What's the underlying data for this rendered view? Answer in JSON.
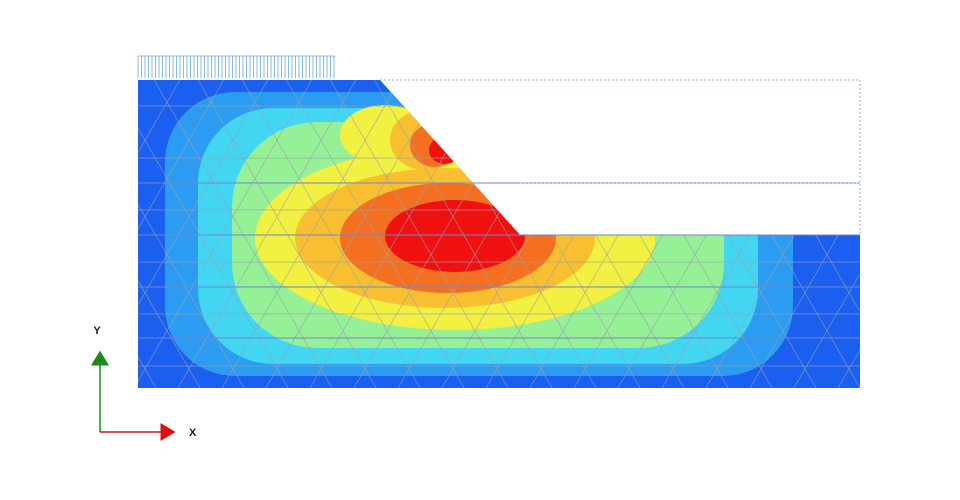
{
  "axes": {
    "y_label": "Y",
    "x_label": "X"
  }
}
